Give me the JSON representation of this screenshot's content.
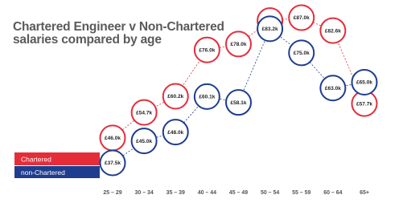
{
  "chart_data": {
    "type": "line",
    "title": "Chartered Engineer v Non-Chartered salaries compared by age",
    "categories": [
      "25 – 29",
      "30 – 34",
      "35 – 39",
      "40 – 44",
      "45 – 49",
      "50 – 54",
      "55 – 59",
      "60 – 64",
      "65+"
    ],
    "series": [
      {
        "name": "Chartered",
        "color": "#e52d3a",
        "values": [
          46.0,
          54.7,
          60.2,
          76.0,
          78.0,
          86.0,
          87.0,
          82.6,
          57.7
        ],
        "value_labels": [
          "£46.0k",
          "£54.7k",
          "£60.2k",
          "£76.0k",
          "£78.0k",
          "£86.0k",
          "£87.0k",
          "£82.6k",
          "£57.7k"
        ]
      },
      {
        "name": "non-Chartered",
        "color": "#1e3d8f",
        "values": [
          37.5,
          45.0,
          48.0,
          60.1,
          58.1,
          83.2,
          75.0,
          63.0,
          65.0
        ],
        "value_labels": [
          "£37.5k",
          "£45.0k",
          "£48.0k",
          "£60.1k",
          "£58.1k",
          "£83.2k",
          "£75.0k",
          "£63.0k",
          "£65.0k"
        ]
      }
    ]
  }
}
